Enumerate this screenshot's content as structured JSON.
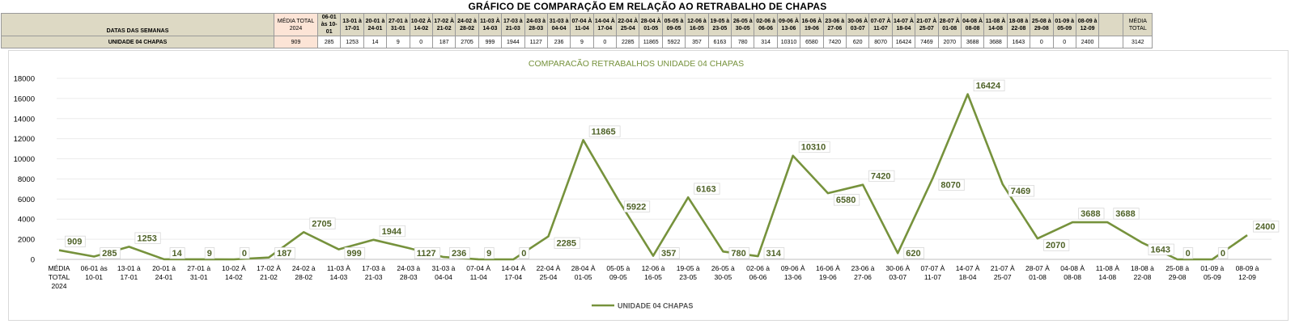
{
  "page": {
    "title": "GRÁFICO DE COMPARAÇÃO EM RELAÇÃO AO RETRABALHO DE CHAPAS"
  },
  "table": {
    "header_label": "DATAS DAS SEMANAS",
    "row_label": "UNIDADE 04 CHAPAS",
    "avg_header": "MÉDIA TOTAL 2024",
    "avg_value": "909",
    "total_header": "MÉDIA TOTAL",
    "total_value": "3142",
    "weeks": [
      "06-01 às 10-01",
      "13-01 à 17-01",
      "20-01 à 24-01",
      "27-01 à 31-01",
      "10-02 À 14-02",
      "17-02 À 21-02",
      "24-02 à 28-02",
      "11-03 À 14-03",
      "17-03 à 21-03",
      "24-03 à 28-03",
      "31-03 à 04-04",
      "07-04 À 11-04",
      "14-04 À 17-04",
      "22-04 À 25-04",
      "28-04 À 01-05",
      "05-05 à 09-05",
      "12-06 à 16-05",
      "19-05 à 23-05",
      "26-05 à 30-05",
      "02-06 à 06-06",
      "09-06 À 13-06",
      "16-06 À 19-06",
      "23-06 à 27-06",
      "30-06 À 03-07",
      "07-07 À 11-07",
      "14-07 À 18-04",
      "21-07 À 25-07",
      "28-07 À 01-08",
      "04-08 À 08-08",
      "11-08 À 14-08",
      "18-08 à 22-08",
      "25-08 à 29-08",
      "01-09 à 05-09",
      "08-09 à 12-09"
    ],
    "values": [
      "285",
      "1253",
      "14",
      "9",
      "0",
      "187",
      "2705",
      "999",
      "1944",
      "1127",
      "236",
      "9",
      "0",
      "2285",
      "11865",
      "5922",
      "357",
      "6163",
      "780",
      "314",
      "10310",
      "6580",
      "7420",
      "620",
      "8070",
      "16424",
      "7469",
      "2070",
      "3688",
      "3688",
      "1643",
      "0",
      "0",
      "2400"
    ]
  },
  "chart_data": {
    "type": "line",
    "title": "COMPARACÃO RETRABALHOS UNIDADE 04 CHAPAS",
    "categories": [
      [
        "MÉDIA",
        "TOTAL",
        "2024"
      ],
      [
        "06-01 às",
        "10-01"
      ],
      [
        "13-01 à",
        "17-01"
      ],
      [
        "20-01 à",
        "24-01"
      ],
      [
        "27-01 à",
        "31-01"
      ],
      [
        "10-02 À",
        "14-02"
      ],
      [
        "17-02 À",
        "21-02"
      ],
      [
        "24-02 à",
        "28-02"
      ],
      [
        "11-03 À",
        "14-03"
      ],
      [
        "17-03 à",
        "21-03"
      ],
      [
        "24-03 à",
        "28-03"
      ],
      [
        "31-03 à",
        "04-04"
      ],
      [
        "07-04 À",
        "11-04"
      ],
      [
        "14-04 À",
        "17-04"
      ],
      [
        "22-04 À",
        "25-04"
      ],
      [
        "28-04 À",
        "01-05"
      ],
      [
        "05-05 à",
        "09-05"
      ],
      [
        "12-06 à",
        "16-05"
      ],
      [
        "19-05 à",
        "23-05"
      ],
      [
        "26-05 à",
        "30-05"
      ],
      [
        "02-06 à",
        "06-06"
      ],
      [
        "09-06 À",
        "13-06"
      ],
      [
        "16-06 À",
        "19-06"
      ],
      [
        "23-06 à",
        "27-06"
      ],
      [
        "30-06 À",
        "03-07"
      ],
      [
        "07-07 À",
        "11-07"
      ],
      [
        "14-07 À",
        "18-04"
      ],
      [
        "21-07 À",
        "25-07"
      ],
      [
        "28-07 À",
        "01-08"
      ],
      [
        "04-08 À",
        "08-08"
      ],
      [
        "11-08 À",
        "14-08"
      ],
      [
        "18-08 à",
        "22-08"
      ],
      [
        "25-08 à",
        "29-08"
      ],
      [
        "01-09 à",
        "05-09"
      ],
      [
        "08-09 à",
        "12-09"
      ]
    ],
    "series": [
      {
        "name": "UNIDADE 04 CHAPAS",
        "color": "#76923c",
        "values": [
          909,
          285,
          1253,
          14,
          9,
          0,
          187,
          2705,
          999,
          1944,
          1127,
          236,
          9,
          0,
          2285,
          11865,
          5922,
          357,
          6163,
          780,
          314,
          10310,
          6580,
          7420,
          620,
          8070,
          16424,
          7469,
          2070,
          3688,
          3688,
          1643,
          0,
          0,
          2400
        ]
      }
    ],
    "ylim": [
      0,
      18000
    ],
    "yticks": [
      0,
      2000,
      4000,
      6000,
      8000,
      10000,
      12000,
      14000,
      16000,
      18000
    ],
    "grid": true,
    "legend_position": "bottom",
    "label_color": "#4f6228"
  }
}
